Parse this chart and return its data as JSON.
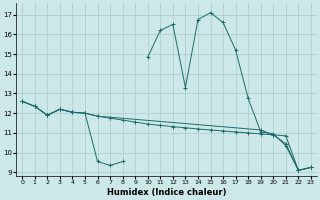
{
  "xlabel": "Humidex (Indice chaleur)",
  "bg_color": "#cce8e8",
  "grid_color": "#aacccc",
  "line_color": "#1e6b6b",
  "xlim": [
    -0.5,
    23.5
  ],
  "ylim": [
    8.8,
    17.6
  ],
  "yticks": [
    9,
    10,
    11,
    12,
    13,
    14,
    15,
    16,
    17
  ],
  "xticks": [
    0,
    1,
    2,
    3,
    4,
    5,
    6,
    7,
    8,
    9,
    10,
    11,
    12,
    13,
    14,
    15,
    16,
    17,
    18,
    19,
    20,
    21,
    22,
    23
  ],
  "curve_main_x": [
    0,
    1,
    2,
    3,
    4,
    5,
    6,
    7,
    8,
    9,
    10,
    11,
    12,
    13,
    14,
    15,
    16,
    17,
    18,
    19,
    20,
    21,
    22,
    23
  ],
  "curve_main_y": [
    12.6,
    12.35,
    11.9,
    12.2,
    12.05,
    12.0,
    9.55,
    9.35,
    9.55,
    null,
    14.85,
    16.2,
    16.5,
    13.3,
    16.75,
    17.1,
    16.6,
    15.2,
    12.75,
    11.05,
    10.95,
    10.35,
    9.1,
    9.25
  ],
  "curve_flat1_x": [
    0,
    1,
    2,
    3,
    4,
    5,
    6,
    7,
    8,
    9,
    10,
    11,
    12,
    13,
    14,
    15,
    16,
    17,
    18,
    19,
    20,
    21,
    22,
    23
  ],
  "curve_flat1_y": [
    12.6,
    12.35,
    11.9,
    12.2,
    12.05,
    12.0,
    11.85,
    11.75,
    11.65,
    11.55,
    11.45,
    11.38,
    11.32,
    11.26,
    11.2,
    11.15,
    11.1,
    11.05,
    11.0,
    10.95,
    10.9,
    10.85,
    9.1,
    9.25
  ],
  "curve_flat2_x": [
    0,
    1,
    2,
    3,
    4,
    5,
    6,
    19,
    20,
    21,
    22,
    23
  ],
  "curve_flat2_y": [
    12.6,
    12.35,
    11.9,
    12.2,
    12.05,
    12.0,
    11.85,
    11.15,
    10.9,
    10.45,
    9.1,
    9.25
  ]
}
